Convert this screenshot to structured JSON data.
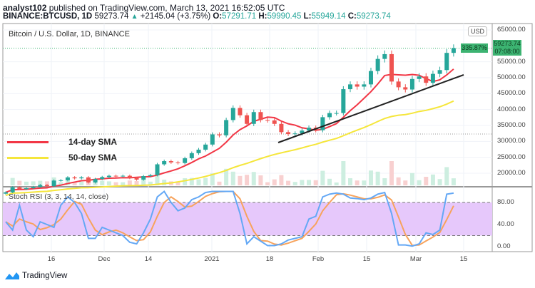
{
  "header": {
    "author": "analyst102",
    "published": "published on TradingView.com, March 13, 2021 16:52:05 UTC",
    "symbol": "BINANCE:BTCUSD, 1D",
    "last": "59273.74",
    "change": "+2145.04 (+3.75%)",
    "o_label": "O:",
    "o": "57291.71",
    "h_label": "H:",
    "h": "59990.45",
    "l_label": "L:",
    "l": "55949.14",
    "c_label": "C:",
    "c": "59273.74"
  },
  "chart_data": {
    "type": "candlestick",
    "title": "Bitcoin / U.S. Dollar, 1D, BINANCE",
    "currency": "USD",
    "interval_days": 2,
    "closes": [
      14000,
      15600,
      15000,
      15300,
      15700,
      16300,
      15900,
      17700,
      17800,
      18700,
      18400,
      18700,
      17100,
      18200,
      18800,
      19200,
      19100,
      19200,
      18500,
      18000,
      19100,
      19400,
      22800,
      23800,
      23400,
      23200,
      24700,
      26300,
      27400,
      29000,
      32200,
      31900,
      36700,
      40500,
      38200,
      35500,
      39200,
      36700,
      36600,
      35500,
      32900,
      32300,
      32500,
      33400,
      34300,
      33500,
      37600,
      38900,
      38900,
      46400,
      47900,
      47200,
      47900,
      52100,
      55900,
      57400,
      48800,
      47000,
      46300,
      49600,
      50400,
      48400,
      51200,
      52400,
      57800,
      59273.74
    ],
    "y_ticks": [
      "65000.00",
      "55000.00",
      "50000.00",
      "45000.00",
      "40000.00",
      "35000.00",
      "30000.00",
      "25000.00",
      "20000.00"
    ],
    "x_ticks": [
      "16",
      "Dec",
      "14",
      "2021",
      "18",
      "Feb",
      "15",
      "Mar",
      "15"
    ],
    "last_price": "59273.74",
    "countdown": "07:08:00",
    "percent_badge": "335.87%",
    "legend": [
      {
        "name": "14-day SMA",
        "color": "#f23645"
      },
      {
        "name": "50-day SMA",
        "color": "#f5e63b"
      }
    ],
    "stoch": {
      "title": "Stoch RSI (3, 3, 14, 14, close)",
      "ticks": [
        "80.00",
        "40.00",
        "0.00"
      ],
      "band": [
        20,
        80
      ],
      "k": [
        45,
        30,
        75,
        30,
        18,
        45,
        40,
        35,
        75,
        90,
        80,
        60,
        15,
        15,
        35,
        30,
        25,
        20,
        8,
        5,
        25,
        50,
        90,
        100,
        80,
        65,
        70,
        85,
        90,
        98,
        100,
        100,
        100,
        100,
        60,
        5,
        18,
        10,
        2,
        2,
        5,
        12,
        15,
        18,
        50,
        55,
        90,
        95,
        97,
        95,
        88,
        87,
        85,
        88,
        95,
        98,
        60,
        3,
        3,
        1,
        5,
        25,
        22,
        30,
        95,
        97
      ]
    }
  },
  "footer": {
    "brand": "TradingView"
  }
}
